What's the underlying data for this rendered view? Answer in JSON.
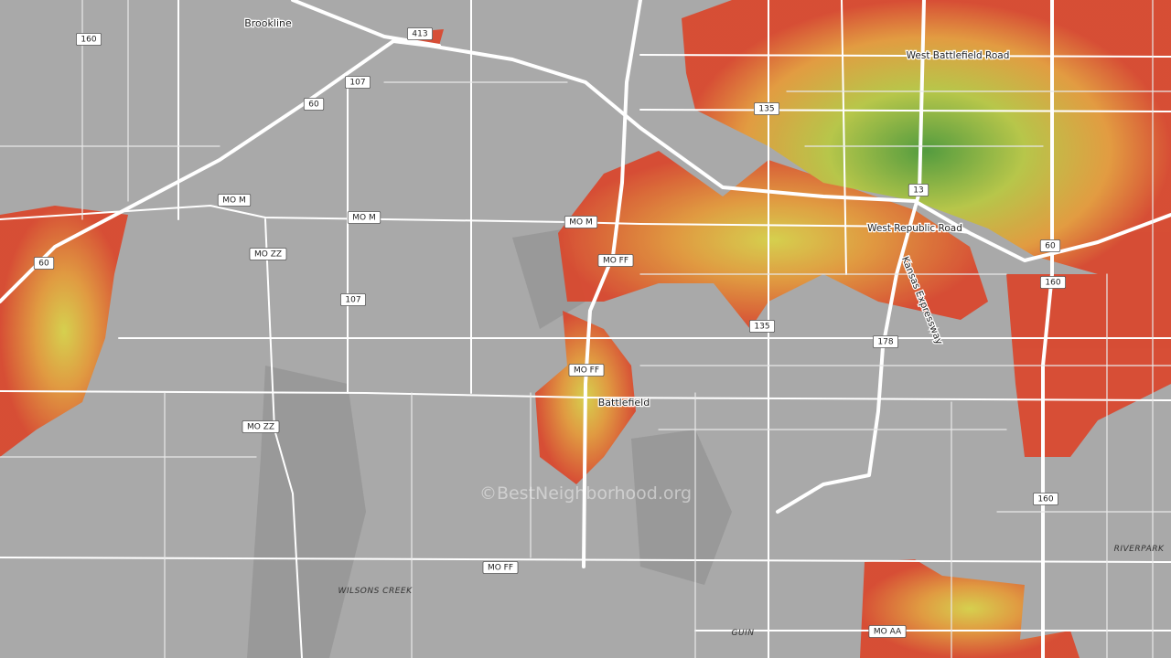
{
  "place_labels": [
    "Brookline",
    "Battlefield"
  ],
  "road_labels": [
    "West Battlefield Road",
    "West Republic Road",
    "Kansas Expressway"
  ],
  "area_labels": [
    "WILSONS CREEK",
    "GUIN",
    "RIVERPARK"
  ],
  "route_shields": [
    "160",
    "413",
    "107",
    "60",
    "MO M",
    "MO M",
    "MO M",
    "MO ZZ",
    "107",
    "60",
    "MO FF",
    "135",
    "13",
    "60",
    "160",
    "135",
    "178",
    "MO FF",
    "MO ZZ",
    "160",
    "MO FF",
    "MO AA"
  ],
  "watermark": "©BestNeighborhood.org"
}
